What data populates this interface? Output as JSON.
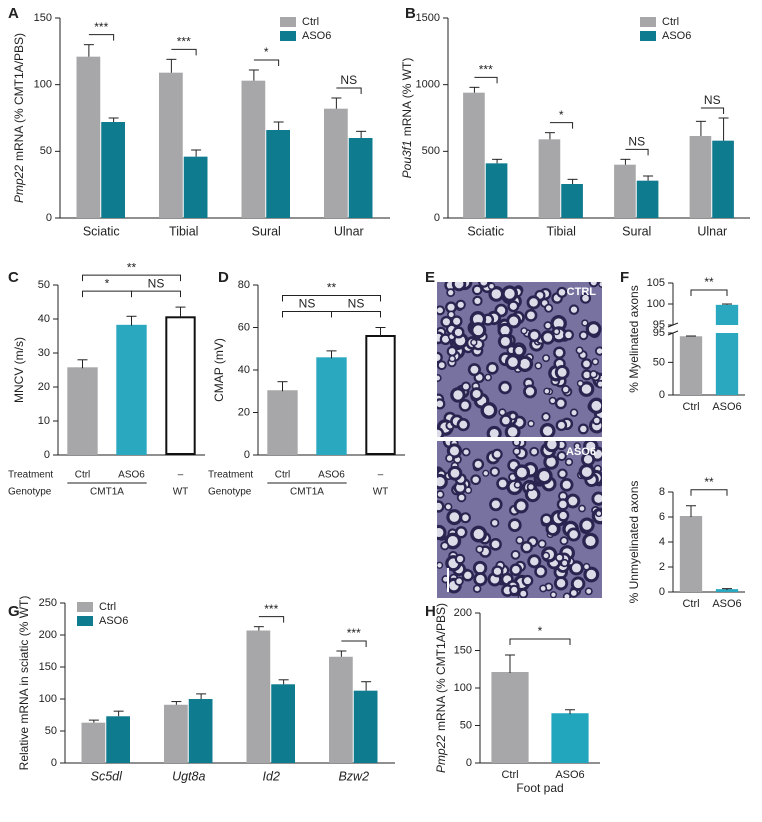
{
  "chart_data": [
    {
      "type": "grouped_bar",
      "panel": "A",
      "ylabel_gene": "Pmp22",
      "ylabel": "mRNA (% CMT1A/PBS)",
      "categories": [
        "Sciatic",
        "Tibial",
        "Sural",
        "Ulnar"
      ],
      "series": [
        {
          "name": "Ctrl",
          "color": "#a7a7a9",
          "values": [
            121,
            109,
            103,
            82
          ],
          "errors": [
            9,
            10,
            8,
            8
          ]
        },
        {
          "name": "ASO6",
          "color": "#0f7b8f",
          "values": [
            72,
            46,
            66,
            60
          ],
          "errors": [
            3,
            5,
            6,
            5
          ]
        }
      ],
      "significance": [
        "***",
        "***",
        "*",
        "NS"
      ],
      "ylim": [
        0,
        150
      ],
      "yticks": [
        0,
        50,
        100,
        150
      ],
      "legend": "upper right"
    },
    {
      "type": "grouped_bar",
      "panel": "B",
      "ylabel_gene": "Pou3f1",
      "ylabel": "mRNA (% WT)",
      "categories": [
        "Sciatic",
        "Tibial",
        "Sural",
        "Ulnar"
      ],
      "series": [
        {
          "name": "Ctrl",
          "color": "#a7a7a9",
          "values": [
            940,
            590,
            400,
            615
          ],
          "errors": [
            40,
            50,
            40,
            110
          ]
        },
        {
          "name": "ASO6",
          "color": "#0f7b8f",
          "values": [
            410,
            255,
            280,
            580
          ],
          "errors": [
            30,
            35,
            35,
            170
          ]
        }
      ],
      "significance": [
        "***",
        "*",
        "NS",
        "NS"
      ],
      "ylim": [
        0,
        1500
      ],
      "yticks": [
        0,
        500,
        1000,
        1500
      ],
      "legend": "upper right"
    },
    {
      "type": "bar",
      "panel": "C",
      "ylabel": "MNCV (m/s)",
      "categories": [
        "Ctrl",
        "ASO6",
        "–"
      ],
      "values": [
        25.5,
        38,
        40.5
      ],
      "errors": [
        2.5,
        2.8,
        3
      ],
      "colors": [
        "#a7a7a9",
        "#2aa8c0",
        "#ffffff"
      ],
      "edgecolors": [
        "#a7a7a9",
        "#2aa8c0",
        "#111111"
      ],
      "row_labels": [
        "Treatment",
        "Genotype"
      ],
      "groups": [
        {
          "label": "CMT1A",
          "span": [
            0,
            1
          ]
        },
        {
          "label": "WT",
          "span": [
            2,
            2
          ]
        }
      ],
      "comparisons": [
        {
          "pair": [
            0,
            1
          ],
          "label": "*"
        },
        {
          "pair": [
            1,
            2
          ],
          "label": "NS"
        },
        {
          "pair": [
            0,
            2
          ],
          "label": "**"
        }
      ],
      "ylim": [
        0,
        50
      ],
      "yticks": [
        0,
        10,
        20,
        30,
        40,
        50
      ]
    },
    {
      "type": "bar",
      "panel": "D",
      "ylabel": "CMAP (mV)",
      "categories": [
        "Ctrl",
        "ASO6",
        "–"
      ],
      "values": [
        30,
        45.5,
        56
      ],
      "errors": [
        4.5,
        3.5,
        4
      ],
      "colors": [
        "#a7a7a9",
        "#2aa8c0",
        "#ffffff"
      ],
      "edgecolors": [
        "#a7a7a9",
        "#2aa8c0",
        "#111111"
      ],
      "row_labels": [
        "Treatment",
        "Genotype"
      ],
      "groups": [
        {
          "label": "CMT1A",
          "span": [
            0,
            1
          ]
        },
        {
          "label": "WT",
          "span": [
            2,
            2
          ]
        }
      ],
      "comparisons": [
        {
          "pair": [
            0,
            1
          ],
          "label": "NS"
        },
        {
          "pair": [
            1,
            2
          ],
          "label": "NS"
        },
        {
          "pair": [
            0,
            2
          ],
          "label": "**"
        }
      ],
      "ylim": [
        0,
        80
      ],
      "yticks": [
        0,
        20,
        40,
        60,
        80
      ]
    },
    {
      "type": "broken_bar",
      "panel": "F",
      "ylabel": "% Myelinated axons",
      "categories": [
        "Ctrl",
        "ASO6"
      ],
      "values": [
        90,
        99.8
      ],
      "errors": [
        0.4,
        0.2
      ],
      "colors": [
        "#a7a7a9",
        "#2aa8c0"
      ],
      "comparisons": [
        {
          "pair": [
            0,
            1
          ],
          "label": "**"
        }
      ],
      "ylim_segments": [
        [
          0,
          95
        ],
        [
          95,
          105
        ]
      ],
      "yticks": [
        [
          0,
          50,
          95
        ],
        [
          95,
          100,
          105
        ]
      ]
    },
    {
      "type": "bar",
      "ylabel": "% Unmyelinated axons",
      "categories": [
        "Ctrl",
        "ASO6"
      ],
      "values": [
        6.0,
        0.15
      ],
      "errors": [
        0.9,
        0.12
      ],
      "colors": [
        "#a7a7a9",
        "#2aa8c0"
      ],
      "edgecolors": [
        "#a7a7a9",
        "#2aa8c0"
      ],
      "comparisons": [
        {
          "pair": [
            0,
            1
          ],
          "label": "**"
        }
      ],
      "ylim": [
        0,
        8
      ],
      "yticks": [
        0,
        2,
        4,
        6,
        8
      ]
    },
    {
      "type": "grouped_bar",
      "panel": "G",
      "ylabel": "Relative mRNA in sciatic (% WT)",
      "categories": [
        "Sc5dl",
        "Ugt8a",
        "Id2",
        "Bzw2"
      ],
      "category_style": "italic",
      "series": [
        {
          "name": "Ctrl",
          "color": "#a7a7a9",
          "values": [
            63,
            91,
            207,
            166
          ],
          "errors": [
            4,
            5,
            6,
            9
          ]
        },
        {
          "name": "ASO6",
          "color": "#0f7b8f",
          "values": [
            73,
            100,
            123,
            113
          ],
          "errors": [
            8,
            8,
            7,
            14
          ]
        }
      ],
      "significance": [
        null,
        null,
        "***",
        "***"
      ],
      "ylim": [
        0,
        250
      ],
      "yticks": [
        0,
        50,
        100,
        150,
        200,
        250
      ],
      "legend": "upper left"
    },
    {
      "type": "bar",
      "panel": "H",
      "ylabel_gene": "Pmp22",
      "ylabel": "mRNA (% CMT1A/PBS)",
      "xlabel": "Foot pad",
      "categories": [
        "Ctrl",
        "ASO6"
      ],
      "values": [
        120,
        65
      ],
      "errors": [
        24,
        6
      ],
      "colors": [
        "#a7a7a9",
        "#22a6be"
      ],
      "edgecolors": [
        "#a7a7a9",
        "#22a6be"
      ],
      "comparisons": [
        {
          "pair": [
            0,
            1
          ],
          "label": "*"
        }
      ],
      "ylim": [
        0,
        200
      ],
      "yticks": [
        0,
        50,
        100,
        150,
        200
      ]
    }
  ],
  "figure_e": {
    "panel": "E",
    "labels": [
      "CTRL",
      "ASO6"
    ]
  }
}
